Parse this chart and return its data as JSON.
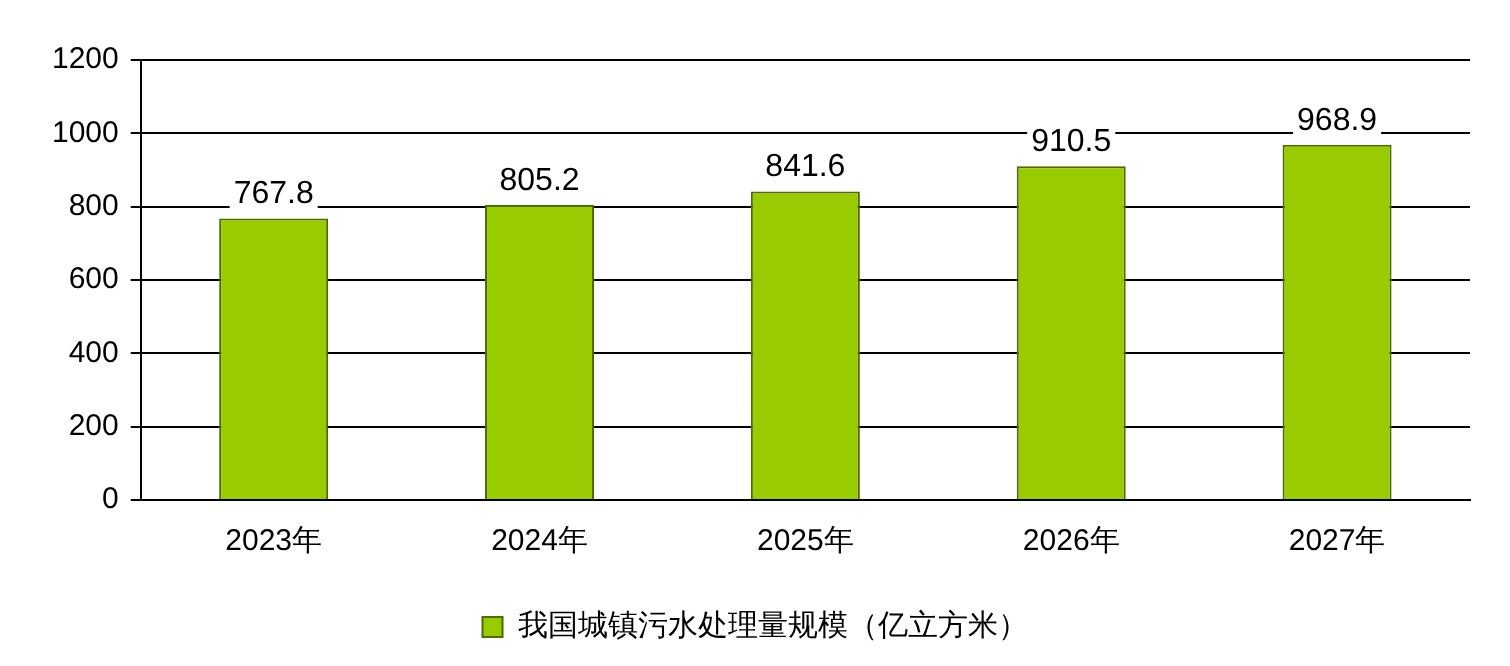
{
  "chart_data": {
    "type": "bar",
    "categories": [
      "2023年",
      "2024年",
      "2025年",
      "2026年",
      "2027年"
    ],
    "series": [
      {
        "name": "我国城镇污水处理量规模（亿立方米）",
        "color": "#99cc00",
        "values": [
          767.8,
          805.2,
          841.6,
          910.5,
          968.9
        ]
      }
    ],
    "ylim": [
      0,
      1200
    ],
    "yticks": [
      0,
      200,
      400,
      600,
      800,
      1000,
      1200
    ],
    "grid": "y",
    "legend": "bottom",
    "data_labels": true
  }
}
